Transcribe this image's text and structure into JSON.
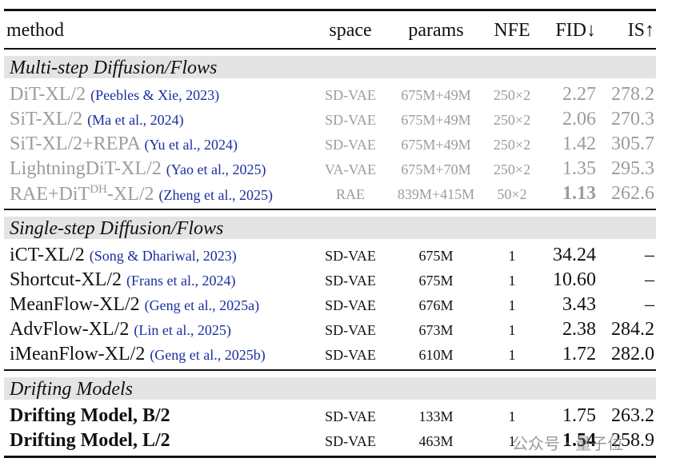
{
  "header": [
    "method",
    "space",
    "params",
    "NFE",
    "FID↓",
    "IS↑"
  ],
  "sections": [
    {
      "title": "Multi-step Diffusion/Flows",
      "muted": true,
      "rows": [
        {
          "method": "DiT-XL/2",
          "citation": "(Peebles & Xie, 2023)",
          "space": "SD-VAE",
          "params": "675M+49M",
          "nfe": "250×2",
          "fid": "2.27",
          "is": "278.2"
        },
        {
          "method": "SiT-XL/2",
          "citation": "(Ma et al., 2024)",
          "space": "SD-VAE",
          "params": "675M+49M",
          "nfe": "250×2",
          "fid": "2.06",
          "is": "270.3"
        },
        {
          "method": "SiT-XL/2+REPA",
          "citation": "(Yu et al., 2024)",
          "space": "SD-VAE",
          "params": "675M+49M",
          "nfe": "250×2",
          "fid": "1.42",
          "is": "305.7"
        },
        {
          "method": "LightningDiT-XL/2",
          "citation": "(Yao et al., 2025)",
          "space": "VA-VAE",
          "params": "675M+70M",
          "nfe": "250×2",
          "fid": "1.35",
          "is": "295.3"
        },
        {
          "method": "RAE+DiT",
          "method_sup": "DH",
          "method_tail": "-XL/2",
          "citation": "(Zheng et al., 2025)",
          "space": "RAE",
          "params": "839M+415M",
          "nfe": "50×2",
          "fid": "1.13",
          "is": "262.6",
          "bold": [
            "fid"
          ]
        }
      ]
    },
    {
      "title": "Single-step Diffusion/Flows",
      "muted": false,
      "rows": [
        {
          "method": "iCT-XL/2",
          "citation": "(Song & Dhariwal, 2023)",
          "space": "SD-VAE",
          "params": "675M",
          "nfe": "1",
          "fid": "34.24",
          "is": "–"
        },
        {
          "method": "Shortcut-XL/2",
          "citation": "(Frans et al., 2024)",
          "space": "SD-VAE",
          "params": "675M",
          "nfe": "1",
          "fid": "10.60",
          "is": "–"
        },
        {
          "method": "MeanFlow-XL/2",
          "citation": "(Geng et al., 2025a)",
          "space": "SD-VAE",
          "params": "676M",
          "nfe": "1",
          "fid": "3.43",
          "is": "–"
        },
        {
          "method": "AdvFlow-XL/2",
          "citation": "(Lin et al., 2025)",
          "space": "SD-VAE",
          "params": "673M",
          "nfe": "1",
          "fid": "2.38",
          "is": "284.2"
        },
        {
          "method": "iMeanFlow-XL/2",
          "citation": "(Geng et al., 2025b)",
          "space": "SD-VAE",
          "params": "610M",
          "nfe": "1",
          "fid": "1.72",
          "is": "282.0"
        }
      ]
    },
    {
      "title": "Drifting Models",
      "muted": false,
      "rows": [
        {
          "method": "Drifting Model, B/2",
          "space": "SD-VAE",
          "params": "133M",
          "nfe": "1",
          "fid": "1.75",
          "is": "263.2",
          "bold": [
            "method"
          ]
        },
        {
          "method": "Drifting Model, L/2",
          "space": "SD-VAE",
          "params": "463M",
          "nfe": "1",
          "fid": "1.54",
          "is": "258.9",
          "bold": [
            "method",
            "fid"
          ]
        }
      ]
    }
  ],
  "watermark": "公众号 · 量子位"
}
